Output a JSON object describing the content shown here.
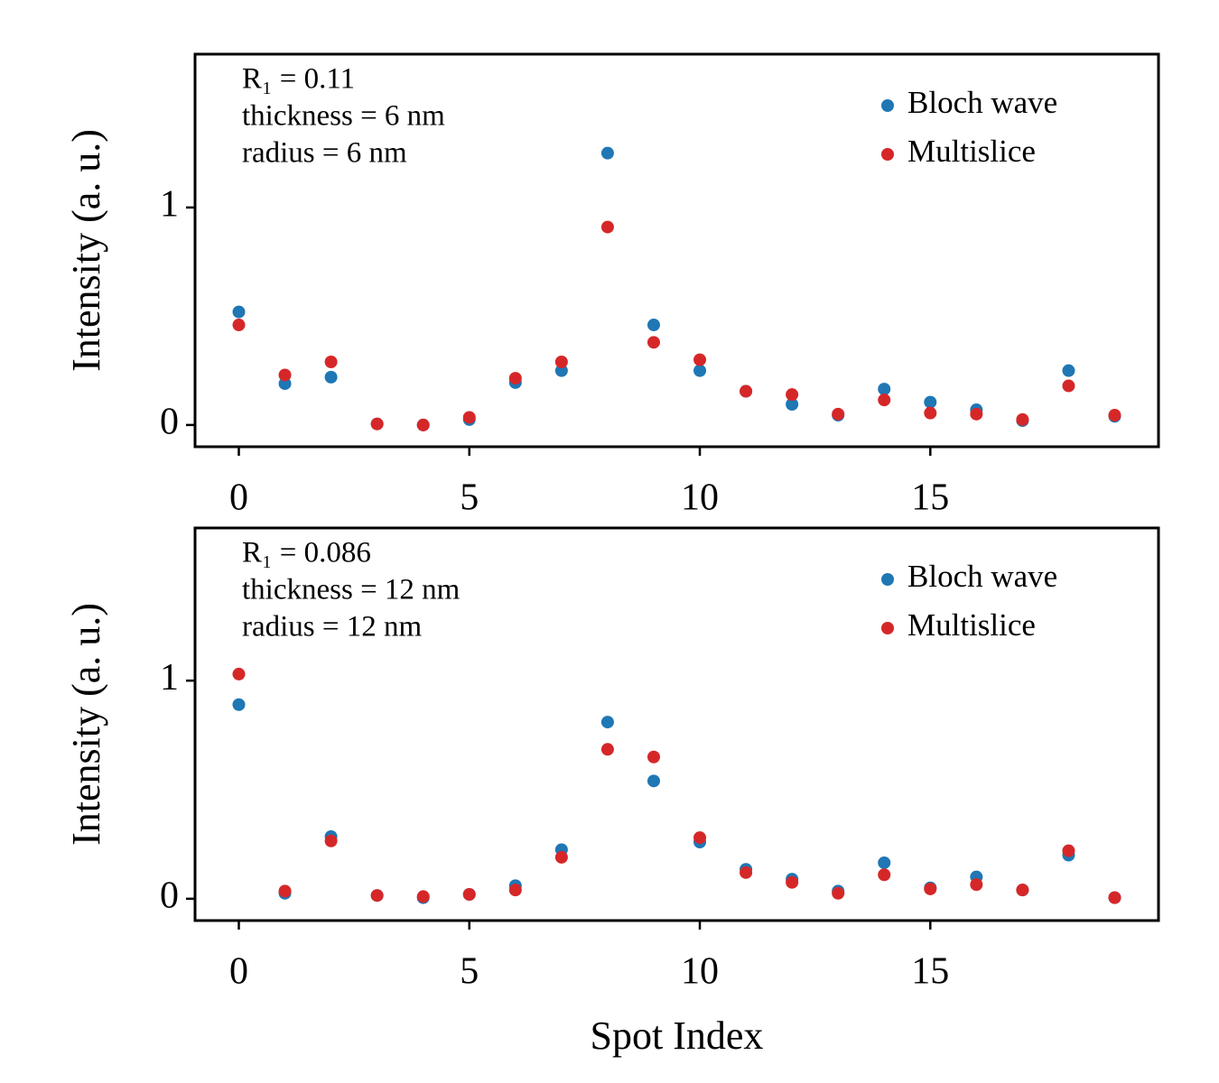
{
  "chart_data": [
    {
      "type": "scatter",
      "ylabel": "Intensity (a. u.)",
      "annotations": [
        "R₁ = 0.11",
        "thickness = 6 nm",
        "radius = 6 nm"
      ],
      "x": [
        0,
        1,
        2,
        3,
        4,
        5,
        6,
        7,
        8,
        9,
        10,
        11,
        12,
        13,
        14,
        15,
        16,
        17,
        18,
        19
      ],
      "series": [
        {
          "name": "Bloch wave",
          "color": "#1f77b4",
          "values": [
            0.52,
            0.19,
            0.22,
            0.005,
            0,
            0.025,
            0.195,
            0.25,
            1.25,
            0.46,
            0.25,
            0.155,
            0.095,
            0.045,
            0.165,
            0.105,
            0.07,
            0.02,
            0.25,
            0.04
          ]
        },
        {
          "name": "Multislice",
          "color": "#d62728",
          "values": [
            0.46,
            0.23,
            0.29,
            0.005,
            0,
            0.035,
            0.215,
            0.29,
            0.91,
            0.38,
            0.3,
            0.155,
            0.14,
            0.05,
            0.115,
            0.055,
            0.05,
            0.025,
            0.18,
            0.045
          ]
        }
      ],
      "xlim": [
        -0.95,
        19.95
      ],
      "xticks": [
        0,
        5,
        10,
        15
      ],
      "ylim": [
        -0.1,
        1.705
      ],
      "yticks": [
        0,
        1
      ],
      "legend": "upper right"
    },
    {
      "type": "scatter",
      "ylabel": "Intensity (a. u.)",
      "xlabel": "Spot Index",
      "annotations": [
        "R₁ = 0.086",
        "thickness = 12 nm",
        "radius = 12 nm"
      ],
      "x": [
        0,
        1,
        2,
        3,
        4,
        5,
        6,
        7,
        8,
        9,
        10,
        11,
        12,
        13,
        14,
        15,
        16,
        17,
        18,
        19
      ],
      "series": [
        {
          "name": "Bloch wave",
          "color": "#1f77b4",
          "values": [
            0.89,
            0.025,
            0.285,
            0.015,
            0.005,
            0.02,
            0.06,
            0.225,
            0.81,
            0.54,
            0.26,
            0.135,
            0.09,
            0.035,
            0.165,
            0.05,
            0.1,
            0.04,
            0.2,
            0.005
          ]
        },
        {
          "name": "Multislice",
          "color": "#d62728",
          "values": [
            1.03,
            0.035,
            0.265,
            0.015,
            0.01,
            0.02,
            0.04,
            0.19,
            0.685,
            0.65,
            0.28,
            0.12,
            0.075,
            0.025,
            0.11,
            0.045,
            0.065,
            0.04,
            0.22,
            0.005
          ]
        }
      ],
      "xlim": [
        -0.95,
        19.95
      ],
      "xticks": [
        0,
        5,
        10,
        15
      ],
      "ylim": [
        -0.1,
        1.7
      ],
      "yticks": [
        0,
        1
      ],
      "legend": "upper right"
    }
  ]
}
